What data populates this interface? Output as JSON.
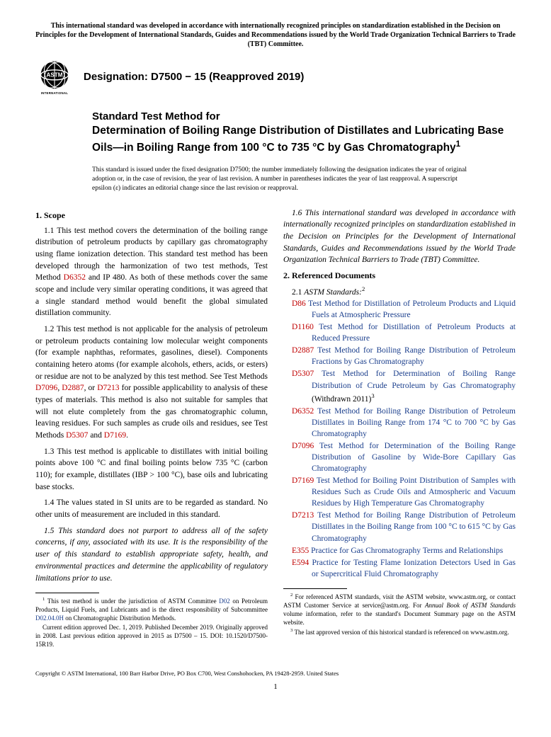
{
  "top_notice": "This international standard was developed in accordance with internationally recognized principles on standardization established in the Decision on Principles for the Development of International Standards, Guides and Recommendations issued by the World Trade Organization Technical Barriers to Trade (TBT) Committee.",
  "logo_label": "ASTM INTERNATIONAL",
  "designation_label": "Designation: D7500 − 15 (Reapproved 2019)",
  "title_prefix": "Standard Test Method for",
  "title_main": "Determination of Boiling Range Distribution of Distillates and Lubricating Base Oils—in Boiling Range from 100 °C to 735 °C by Gas Chromatography",
  "title_sup": "1",
  "issuance_note": "This standard is issued under the fixed designation D7500; the number immediately following the designation indicates the year of original adoption or, in the case of revision, the year of last revision. A number in parentheses indicates the year of last reapproval. A superscript epsilon (ε) indicates an editorial change since the last revision or reapproval.",
  "scope_heading": "1. Scope",
  "scope_1_1_a": "1.1 This test method covers the determination of the boiling range distribution of petroleum products by capillary gas chromatography using flame ionization detection. This standard test method has been developed through the harmonization of two test methods, Test Method ",
  "scope_1_1_link": "D6352",
  "scope_1_1_b": " and IP 480. As both of these methods cover the same scope and include very similar operating conditions, it was agreed that a single standard method would benefit the global simulated distillation community.",
  "scope_1_2_a": "1.2 This test method is not applicable for the analysis of petroleum or petroleum products containing low molecular weight components (for example naphthas, reformates, gasolines, diesel). Components containing hetero atoms (for example alcohols, ethers, acids, or esters) or residue are not to be analyzed by this test method. See Test Methods ",
  "scope_1_2_l1": "D7096",
  "scope_1_2_c1": ", ",
  "scope_1_2_l2": "D2887",
  "scope_1_2_c2": ", or ",
  "scope_1_2_l3": "D7213",
  "scope_1_2_b": " for possible applicability to analysis of these types of materials. This method is also not suitable for samples that will not elute completely from the gas chromatographic column, leaving residues. For such samples as crude oils and residues, see Test Methods ",
  "scope_1_2_l4": "D5307",
  "scope_1_2_c3": " and ",
  "scope_1_2_l5": "D7169",
  "scope_1_2_end": ".",
  "scope_1_3": "1.3 This test method is applicable to distillates with initial boiling points above 100 °C and final boiling points below 735 °C (carbon 110); for example, distillates (IBP > 100 °C), base oils and lubricating base stocks.",
  "scope_1_4": "1.4 The values stated in SI units are to be regarded as standard. No other units of measurement are included in this standard.",
  "scope_1_5": "1.5 This standard does not purport to address all of the safety concerns, if any, associated with its use. It is the responsibility of the user of this standard to establish appropriate safety, health, and environmental practices and determine the applicability of regulatory limitations prior to use.",
  "scope_1_6": "1.6 This international standard was developed in accordance with internationally recognized principles on standardization established in the Decision on Principles for the Development of International Standards, Guides and Recommendations issued by the World Trade Organization Technical Barriers to Trade (TBT) Committee.",
  "ref_heading": "2. Referenced Documents",
  "ref_sub_num": "2.1 ",
  "ref_sub_text": "ASTM Standards:",
  "ref_sub_sup": "2",
  "refs": [
    {
      "code": "D86",
      "title": "Test Method for Distillation of Petroleum Products and Liquid Fuels at Atmospheric Pressure"
    },
    {
      "code": "D1160",
      "title": "Test Method for Distillation of Petroleum Products at Reduced Pressure"
    },
    {
      "code": "D2887",
      "title": "Test Method for Boiling Range Distribution of Petroleum Fractions by Gas Chromatography"
    },
    {
      "code": "D5307",
      "title": "Test Method for Determination of Boiling Range Distribution of Crude Petroleum by Gas Chromatography",
      "suffix": " (Withdrawn 2011)",
      "sup": "3"
    },
    {
      "code": "D6352",
      "title": "Test Method for Boiling Range Distribution of Petroleum Distillates in Boiling Range from 174 °C to 700 °C by Gas Chromatography"
    },
    {
      "code": "D7096",
      "title": "Test Method for Determination of the Boiling Range Distribution of Gasoline by Wide-Bore Capillary Gas Chromatography"
    },
    {
      "code": "D7169",
      "title": "Test Method for Boiling Point Distribution of Samples with Residues Such as Crude Oils and Atmospheric and Vacuum Residues by High Temperature Gas Chromatography"
    },
    {
      "code": "D7213",
      "title": "Test Method for Boiling Range Distribution of Petroleum Distillates in the Boiling Range from 100 °C to 615 °C by Gas Chromatography"
    },
    {
      "code": "E355",
      "title": "Practice for Gas Chromatography Terms and Relationships"
    },
    {
      "code": "E594",
      "title": "Practice for Testing Flame Ionization Detectors Used in Gas or Supercritical Fluid Chromatography"
    }
  ],
  "footnote1_a": " This test method is under the jurisdiction of ASTM Committee ",
  "footnote1_l1": "D02",
  "footnote1_b": " on Petroleum Products, Liquid Fuels, and Lubricants and is the direct responsibility of Subcommittee ",
  "footnote1_l2": "D02.04.0H",
  "footnote1_c": " on Chromatographic Distribution Methods.",
  "footnote1_p2": "Current edition approved Dec. 1, 2019. Published December 2019. Originally approved in 2008. Last previous edition approved in 2015 as D7500 – 15. DOI: 10.1520/D7500-15R19.",
  "footnote2_a": " For referenced ASTM standards, visit the ASTM website, www.astm.org, or contact ASTM Customer Service at service@astm.org. For ",
  "footnote2_i": "Annual Book of ASTM Standards",
  "footnote2_b": " volume information, refer to the standard's Document Summary page on the ASTM website.",
  "footnote3": " The last approved version of this historical standard is referenced on www.astm.org.",
  "copyright": "Copyright © ASTM International, 100 Barr Harbor Drive, PO Box C700, West Conshohocken, PA 19428-2959. United States",
  "page_number": "1",
  "colors": {
    "link_blue": "#1a3e8c",
    "code_red": "#c00000",
    "text": "#000000",
    "bg": "#ffffff"
  }
}
